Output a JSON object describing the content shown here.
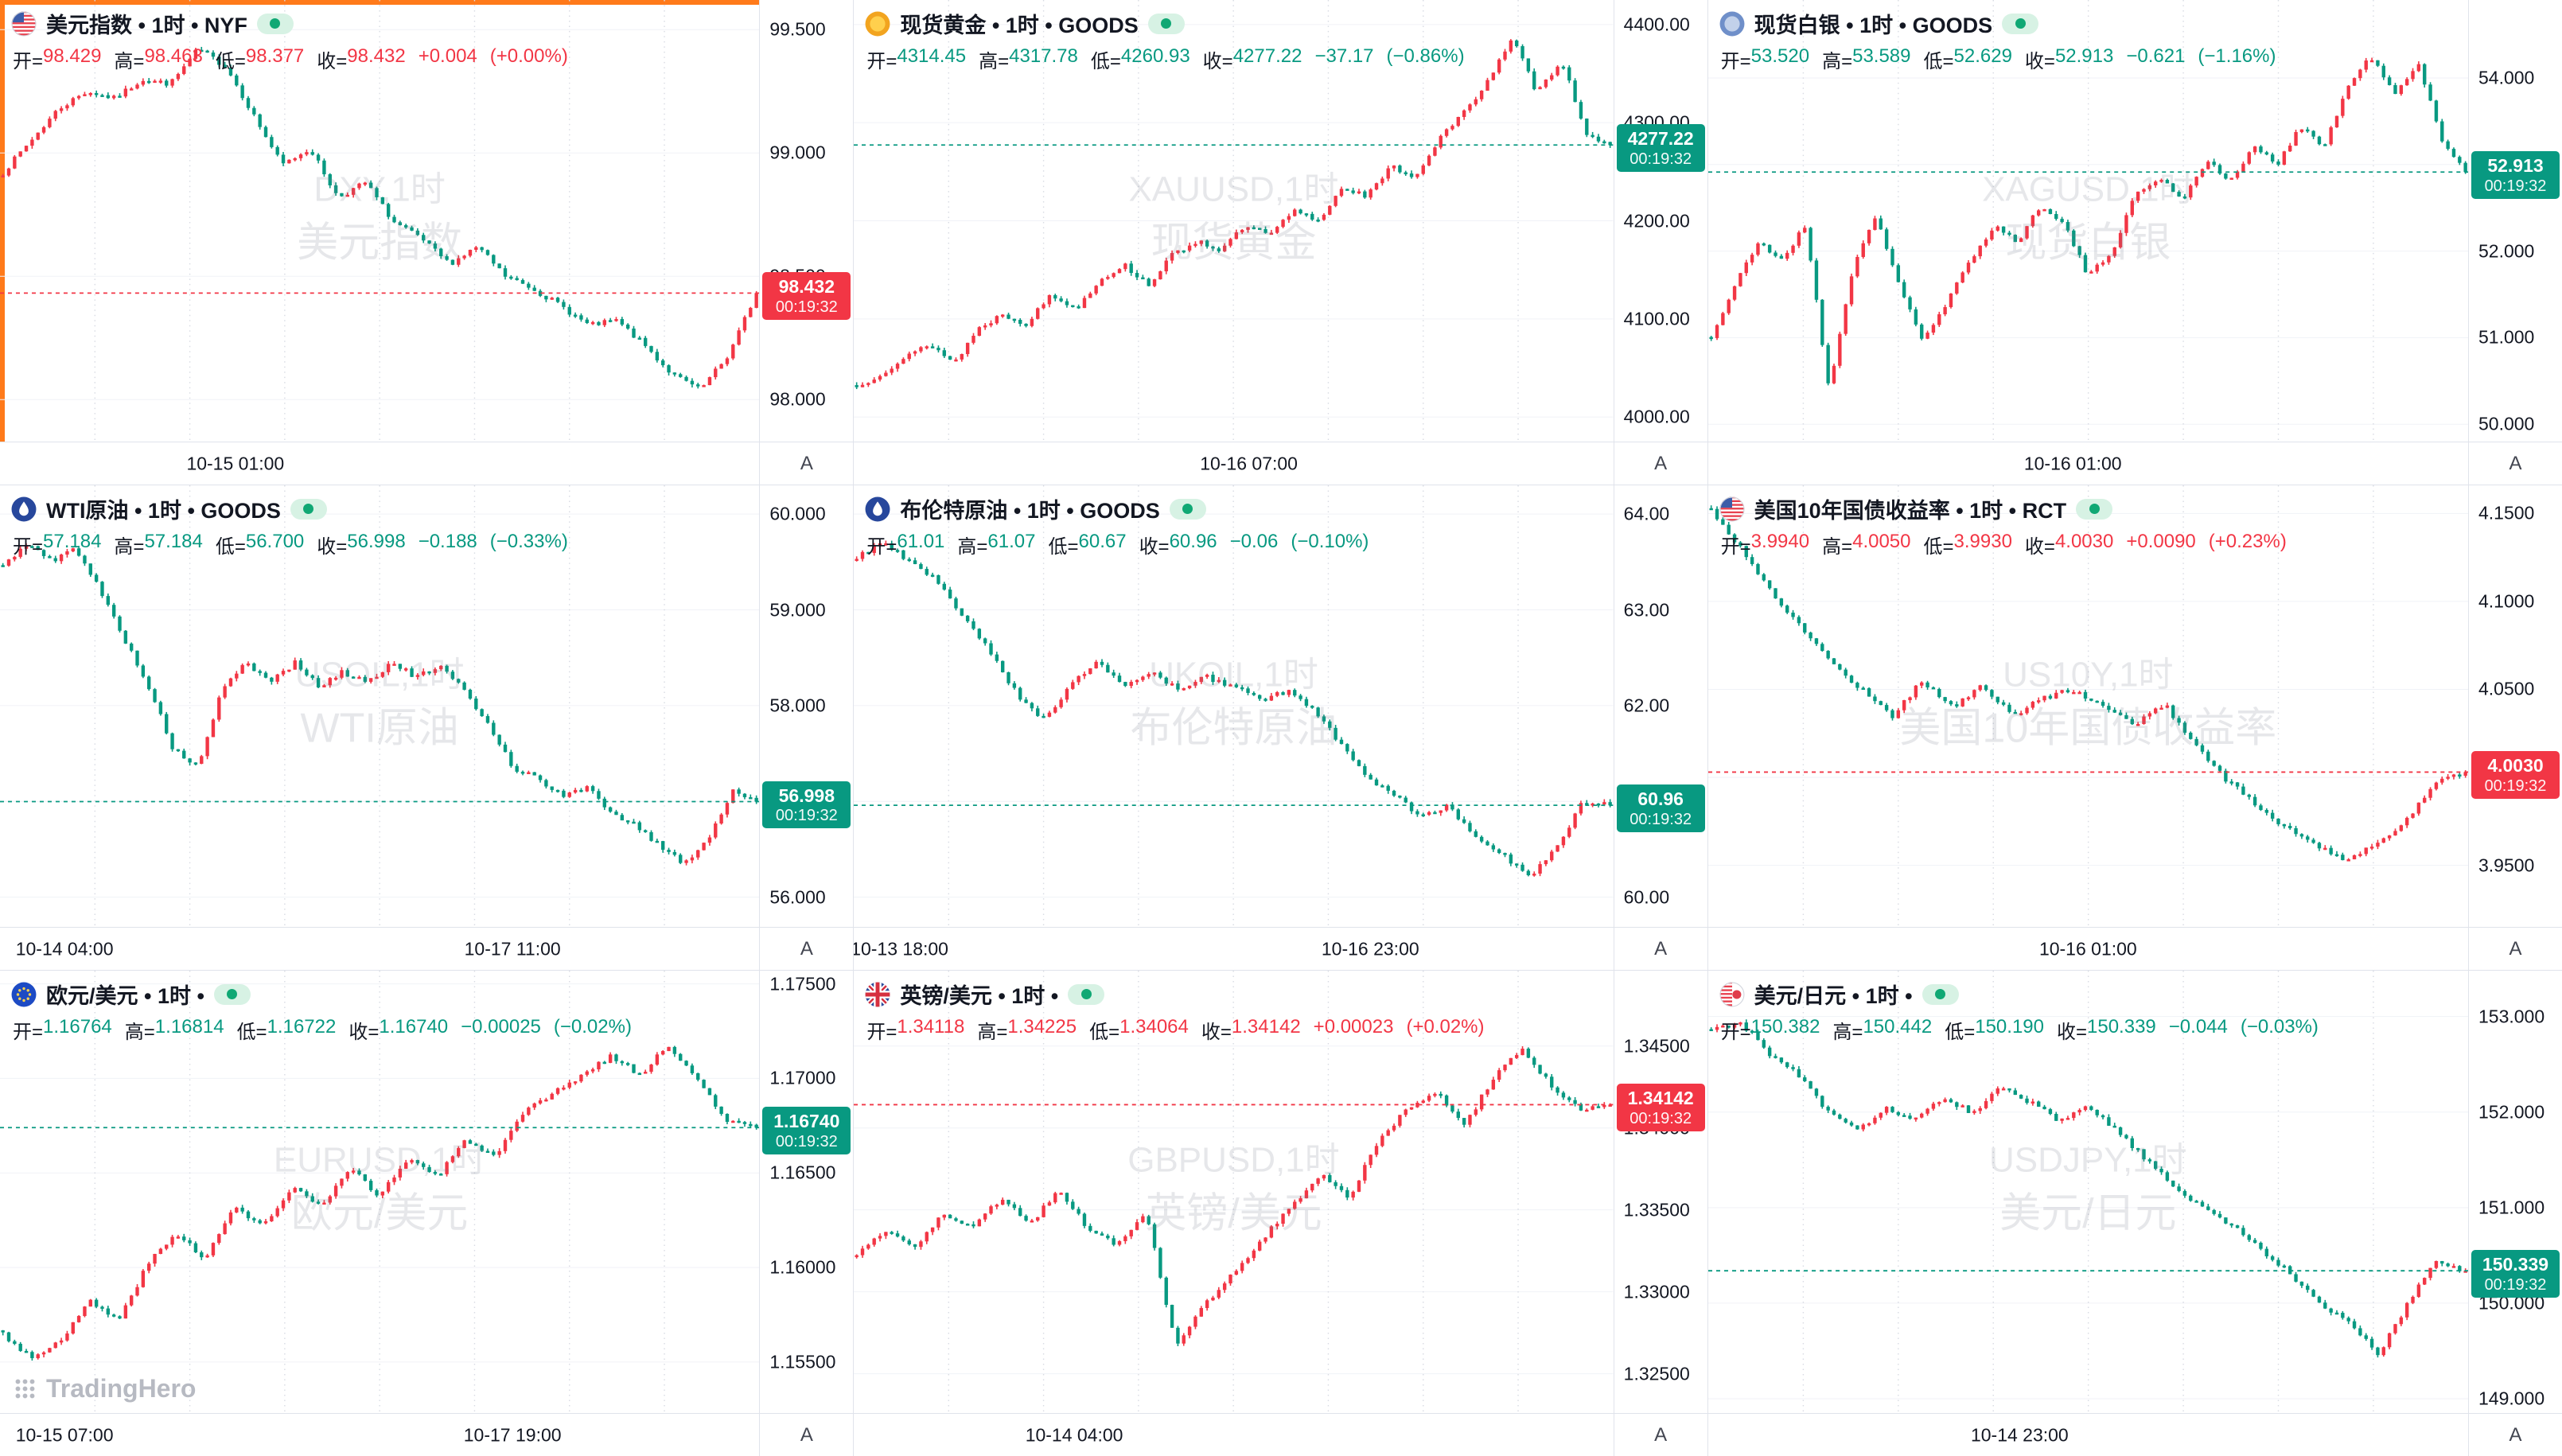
{
  "theme": {
    "up_color": "#f23645",
    "down_color": "#089981",
    "selection_color": "#ff7a1a",
    "grid_color": "#d8dbe3",
    "border_color": "#e0e3eb",
    "status_pill_bg": "#d7f2e4",
    "status_dot": "#10a874"
  },
  "layout": {
    "rows": 3,
    "cols": 3
  },
  "selected_index": 0,
  "brand_watermark": "TradingHero",
  "controls": {
    "auto_label": "A"
  },
  "chart_data": [
    {
      "type": "candlestick",
      "symbol": "DXY",
      "icon": "us-flag",
      "direction": "up",
      "title": "美元指数 • 1时 • NYF",
      "watermark_line1": "DXY,1时",
      "watermark_line2": "美元指数",
      "ohlc": {
        "open_label": "开=",
        "open": "98.429",
        "high_label": "高=",
        "high": "98.463",
        "low_label": "低=",
        "low": "98.377",
        "close_label": "收=",
        "close": "98.432",
        "change": "+0.004",
        "change_pct": "(+0.00%)"
      },
      "price_label": {
        "value": "98.432",
        "time": "00:19:32"
      },
      "axis": {
        "min": 97.83,
        "max": 99.62,
        "ticks": [
          {
            "label": "99.500",
            "value": 99.5
          },
          {
            "label": "99.000",
            "value": 99.0
          },
          {
            "label": "98.500",
            "value": 98.5
          },
          {
            "label": "98.000",
            "value": 98.0
          }
        ]
      },
      "close_value": 98.432,
      "time_labels": [
        {
          "label": "10-15 01:00",
          "x": 0.31
        }
      ],
      "approx_close_path": [
        98.92,
        99.05,
        99.18,
        99.25,
        99.22,
        99.3,
        99.28,
        99.42,
        99.35,
        99.15,
        98.95,
        99.02,
        98.82,
        98.88,
        98.72,
        98.65,
        98.55,
        98.62,
        98.5,
        98.45,
        98.38,
        98.3,
        98.32,
        98.22,
        98.1,
        98.04,
        98.18,
        98.432
      ],
      "candle_count": 130,
      "seed": 7
    },
    {
      "type": "candlestick",
      "symbol": "XAUUSD",
      "icon": "gold-coin",
      "direction": "down",
      "title": "现货黄金 • 1时 • GOODS",
      "watermark_line1": "XAUUSD,1时",
      "watermark_line2": "现货黄金",
      "ohlc": {
        "open_label": "开=",
        "open": "4314.45",
        "high_label": "高=",
        "high": "4317.78",
        "low_label": "低=",
        "low": "4260.93",
        "close_label": "收=",
        "close": "4277.22",
        "change": "−37.17",
        "change_pct": "(−0.86%)"
      },
      "price_label": {
        "value": "4277.22",
        "time": "00:19:32"
      },
      "axis": {
        "min": 3975,
        "max": 4425,
        "ticks": [
          {
            "label": "4400.00",
            "value": 4400
          },
          {
            "label": "4300.00",
            "value": 4300
          },
          {
            "label": "4200.00",
            "value": 4200
          },
          {
            "label": "4100.00",
            "value": 4100
          },
          {
            "label": "4000.00",
            "value": 4000
          }
        ]
      },
      "close_value": 4277.22,
      "time_labels": [
        {
          "label": "10-16 07:00",
          "x": 0.52
        }
      ],
      "approx_close_path": [
        4030,
        4045,
        4060,
        4075,
        4055,
        4090,
        4105,
        4095,
        4125,
        4110,
        4140,
        4155,
        4135,
        4165,
        4180,
        4170,
        4195,
        4185,
        4210,
        4200,
        4235,
        4225,
        4255,
        4245,
        4285,
        4310,
        4345,
        4385,
        4330,
        4365,
        4290,
        4277.22
      ],
      "candle_count": 130,
      "seed": 13
    },
    {
      "type": "candlestick",
      "symbol": "XAGUSD",
      "icon": "silver-coin",
      "direction": "down",
      "title": "现货白银 • 1时 • GOODS",
      "watermark_line1": "XAGUSD,1时",
      "watermark_line2": "现货白银",
      "ohlc": {
        "open_label": "开=",
        "open": "53.520",
        "high_label": "高=",
        "high": "53.589",
        "low_label": "低=",
        "low": "52.629",
        "close_label": "收=",
        "close": "52.913",
        "change": "−0.621",
        "change_pct": "(−1.16%)"
      },
      "price_label": {
        "value": "52.913",
        "time": "00:19:32"
      },
      "axis": {
        "min": 49.8,
        "max": 54.9,
        "ticks": [
          {
            "label": "54.000",
            "value": 54.0
          },
          {
            "label": "53.000",
            "value": 53.0
          },
          {
            "label": "52.000",
            "value": 52.0
          },
          {
            "label": "51.000",
            "value": 51.0
          },
          {
            "label": "50.000",
            "value": 50.0
          }
        ]
      },
      "close_value": 52.913,
      "time_labels": [
        {
          "label": "10-16 01:00",
          "x": 0.48
        }
      ],
      "approx_close_path": [
        51.0,
        51.6,
        52.1,
        51.9,
        52.3,
        50.4,
        51.8,
        52.4,
        51.6,
        50.95,
        51.4,
        51.9,
        52.3,
        52.1,
        52.55,
        52.3,
        51.7,
        52.0,
        52.65,
        52.85,
        52.6,
        53.05,
        52.8,
        53.2,
        53.0,
        53.45,
        53.2,
        53.9,
        54.25,
        53.8,
        54.15,
        53.3,
        52.913
      ],
      "candle_count": 130,
      "seed": 21
    },
    {
      "type": "candlestick",
      "symbol": "USOIL",
      "icon": "oil-drop",
      "direction": "down",
      "title": "WTI原油 • 1时 • GOODS",
      "watermark_line1": "USOIL,1时",
      "watermark_line2": "WTI原油",
      "ohlc": {
        "open_label": "开=",
        "open": "57.184",
        "high_label": "高=",
        "high": "57.184",
        "low_label": "低=",
        "low": "56.700",
        "close_label": "收=",
        "close": "56.998",
        "change": "−0.188",
        "change_pct": "(−0.33%)"
      },
      "price_label": {
        "value": "56.998",
        "time": "00:19:32"
      },
      "axis": {
        "min": 55.69,
        "max": 60.3,
        "ticks": [
          {
            "label": "60.000",
            "value": 60.0
          },
          {
            "label": "59.000",
            "value": 59.0
          },
          {
            "label": "58.000",
            "value": 58.0
          },
          {
            "label": "57.000",
            "value": 57.0
          },
          {
            "label": "56.000",
            "value": 56.0
          }
        ]
      },
      "close_value": 56.998,
      "time_labels": [
        {
          "label": "10-14 04:00",
          "x": 0.085
        },
        {
          "label": "10-17 11:00",
          "x": 0.675
        }
      ],
      "approx_close_path": [
        59.45,
        59.7,
        59.5,
        59.65,
        59.2,
        58.7,
        58.2,
        57.55,
        57.35,
        58.15,
        58.45,
        58.25,
        58.45,
        58.2,
        58.35,
        58.25,
        58.45,
        58.3,
        58.4,
        58.15,
        57.8,
        57.35,
        57.25,
        57.05,
        57.15,
        56.9,
        56.75,
        56.55,
        56.35,
        56.6,
        57.1,
        56.998
      ],
      "candle_count": 130,
      "seed": 5
    },
    {
      "type": "candlestick",
      "symbol": "UKOIL",
      "icon": "oil-drop",
      "direction": "down",
      "title": "布伦特原油 • 1时 • GOODS",
      "watermark_line1": "UKOIL,1时",
      "watermark_line2": "布伦特原油",
      "ohlc": {
        "open_label": "开=",
        "open": "61.01",
        "high_label": "高=",
        "high": "61.07",
        "low_label": "低=",
        "low": "60.67",
        "close_label": "收=",
        "close": "60.96",
        "change": "−0.06",
        "change_pct": "(−0.10%)"
      },
      "price_label": {
        "value": "60.96",
        "time": "00:19:32"
      },
      "axis": {
        "min": 59.69,
        "max": 64.3,
        "ticks": [
          {
            "label": "64.00",
            "value": 64.0
          },
          {
            "label": "63.00",
            "value": 63.0
          },
          {
            "label": "62.00",
            "value": 62.0
          },
          {
            "label": "61.00",
            "value": 61.0
          },
          {
            "label": "60.00",
            "value": 60.0
          }
        ]
      },
      "close_value": 60.96,
      "time_labels": [
        {
          "label": "10-13 18:00",
          "x": 0.06
        },
        {
          "label": "10-16 23:00",
          "x": 0.68
        }
      ],
      "approx_close_path": [
        63.55,
        63.7,
        63.5,
        63.3,
        62.9,
        62.55,
        62.1,
        61.85,
        62.25,
        62.45,
        62.2,
        62.35,
        62.15,
        62.3,
        62.2,
        62.05,
        62.15,
        61.95,
        61.6,
        61.25,
        61.05,
        60.85,
        60.95,
        60.65,
        60.45,
        60.2,
        60.5,
        61.0,
        60.96
      ],
      "candle_count": 130,
      "seed": 9
    },
    {
      "type": "candlestick",
      "symbol": "US10Y",
      "icon": "us-flag",
      "direction": "up",
      "title": "美国10年国债收益率 • 1时 • RCT",
      "watermark_line1": "US10Y,1时",
      "watermark_line2": "美国10年国债收益率",
      "ohlc": {
        "open_label": "开=",
        "open": "3.9940",
        "high_label": "高=",
        "high": "4.0050",
        "low_label": "低=",
        "low": "3.9930",
        "close_label": "收=",
        "close": "4.0030",
        "change": "+0.0090",
        "change_pct": "(+0.23%)"
      },
      "price_label": {
        "value": "4.0030",
        "time": "00:19:32"
      },
      "axis": {
        "min": 3.915,
        "max": 4.166,
        "ticks": [
          {
            "label": "4.1500",
            "value": 4.15
          },
          {
            "label": "4.1000",
            "value": 4.1
          },
          {
            "label": "4.0500",
            "value": 4.05
          },
          {
            "label": "4.0000",
            "value": 4.0
          },
          {
            "label": "3.9500",
            "value": 3.95
          }
        ]
      },
      "close_value": 4.003,
      "time_labels": [
        {
          "label": "10-16 01:00",
          "x": 0.5
        }
      ],
      "approx_close_path": [
        4.152,
        4.13,
        4.105,
        4.085,
        4.065,
        4.05,
        4.035,
        4.055,
        4.04,
        4.052,
        4.035,
        4.045,
        4.05,
        4.04,
        4.03,
        4.042,
        4.02,
        4.0,
        3.985,
        3.972,
        3.962,
        3.952,
        3.962,
        3.975,
        3.998,
        4.003
      ],
      "candle_count": 130,
      "seed": 17
    },
    {
      "type": "candlestick",
      "symbol": "EURUSD",
      "icon": "eu-flag",
      "direction": "down",
      "title": "欧元/美元 • 1时 •",
      "watermark_line1": "EURUSD,1时",
      "watermark_line2": "欧元/美元",
      "ohlc": {
        "open_label": "开=",
        "open": "1.16764",
        "high_label": "高=",
        "high": "1.16814",
        "low_label": "低=",
        "low": "1.16722",
        "close_label": "收=",
        "close": "1.16740",
        "change": "−0.00025",
        "change_pct": "(−0.02%)"
      },
      "price_label": {
        "value": "1.16740",
        "time": "00:19:32"
      },
      "axis": {
        "min": 1.1523,
        "max": 1.1757,
        "ticks": [
          {
            "label": "1.17500",
            "value": 1.175
          },
          {
            "label": "1.17000",
            "value": 1.17
          },
          {
            "label": "1.16500",
            "value": 1.165
          },
          {
            "label": "1.16000",
            "value": 1.16
          },
          {
            "label": "1.15500",
            "value": 1.155
          }
        ]
      },
      "close_value": 1.1674,
      "time_labels": [
        {
          "label": "10-15 07:00",
          "x": 0.085
        },
        {
          "label": "10-17 19:00",
          "x": 0.675
        }
      ],
      "approx_close_path": [
        1.1565,
        1.1552,
        1.1562,
        1.1582,
        1.1572,
        1.1602,
        1.1618,
        1.1605,
        1.1632,
        1.1622,
        1.1642,
        1.1632,
        1.1652,
        1.1638,
        1.1658,
        1.1648,
        1.1668,
        1.1658,
        1.1682,
        1.1692,
        1.1702,
        1.1712,
        1.1702,
        1.1718,
        1.1698,
        1.1678,
        1.1674
      ],
      "candle_count": 130,
      "seed": 3
    },
    {
      "type": "candlestick",
      "symbol": "GBPUSD",
      "icon": "uk-flag",
      "direction": "up",
      "title": "英镑/美元 • 1时 •",
      "watermark_line1": "GBPUSD,1时",
      "watermark_line2": "英镑/美元",
      "ohlc": {
        "open_label": "开=",
        "open": "1.34118",
        "high_label": "高=",
        "high": "1.34225",
        "low_label": "低=",
        "low": "1.34064",
        "close_label": "收=",
        "close": "1.34142",
        "change": "+0.00023",
        "change_pct": "(+0.02%)"
      },
      "price_label": {
        "value": "1.34142",
        "time": "00:19:32"
      },
      "axis": {
        "min": 1.3226,
        "max": 1.3496,
        "ticks": [
          {
            "label": "1.34500",
            "value": 1.345
          },
          {
            "label": "1.34000",
            "value": 1.34
          },
          {
            "label": "1.33500",
            "value": 1.335
          },
          {
            "label": "1.33000",
            "value": 1.33
          },
          {
            "label": "1.32500",
            "value": 1.325
          }
        ]
      },
      "close_value": 1.34142,
      "time_labels": [
        {
          "label": "10-14 04:00",
          "x": 0.29
        }
      ],
      "approx_close_path": [
        1.3322,
        1.3338,
        1.3328,
        1.3348,
        1.3338,
        1.3358,
        1.3342,
        1.3362,
        1.3338,
        1.3328,
        1.3348,
        1.3268,
        1.3292,
        1.3312,
        1.3332,
        1.3352,
        1.3372,
        1.3358,
        1.3392,
        1.3412,
        1.3422,
        1.3402,
        1.3432,
        1.3448,
        1.3425,
        1.341,
        1.34142
      ],
      "candle_count": 130,
      "seed": 25
    },
    {
      "type": "candlestick",
      "symbol": "USDJPY",
      "icon": "us-jp-flag",
      "direction": "down",
      "title": "美元/日元 • 1时 •",
      "watermark_line1": "USDJPY,1时",
      "watermark_line2": "美元/日元",
      "ohlc": {
        "open_label": "开=",
        "open": "150.382",
        "high_label": "高=",
        "high": "150.442",
        "low_label": "低=",
        "low": "150.190",
        "close_label": "收=",
        "close": "150.339",
        "change": "−0.044",
        "change_pct": "(−0.03%)"
      },
      "price_label": {
        "value": "150.339",
        "time": "00:19:32"
      },
      "axis": {
        "min": 148.85,
        "max": 153.48,
        "ticks": [
          {
            "label": "153.000",
            "value": 153.0
          },
          {
            "label": "152.000",
            "value": 152.0
          },
          {
            "label": "151.000",
            "value": 151.0
          },
          {
            "label": "150.000",
            "value": 150.0
          },
          {
            "label": "149.000",
            "value": 149.0
          }
        ]
      },
      "close_value": 150.339,
      "time_labels": [
        {
          "label": "10-14 23:00",
          "x": 0.41
        }
      ],
      "approx_close_path": [
        152.85,
        152.95,
        152.6,
        152.4,
        152.0,
        151.8,
        152.05,
        151.9,
        152.15,
        152.0,
        152.25,
        152.1,
        151.9,
        152.05,
        151.8,
        151.5,
        151.2,
        151.0,
        150.8,
        150.55,
        150.3,
        150.0,
        149.8,
        149.45,
        150.0,
        150.45,
        150.339
      ],
      "candle_count": 130,
      "seed": 31
    }
  ]
}
